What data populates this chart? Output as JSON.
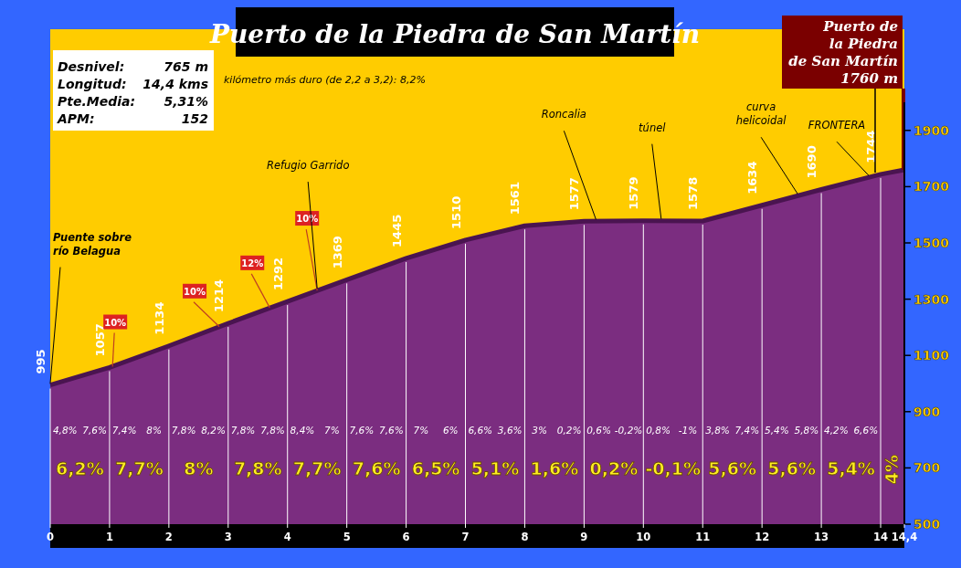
{
  "chart_data": {
    "type": "area",
    "title": "Puerto de la Piedra de San Martín",
    "x": [
      0,
      1,
      2,
      3,
      4,
      5,
      6,
      7,
      8,
      9,
      10,
      11,
      12,
      13,
      14,
      14.4
    ],
    "series": [
      {
        "color": "#7b2d80",
        "values": [
          995,
          1057,
          1134,
          1214,
          1292,
          1369,
          1445,
          1510,
          1561,
          1577,
          1579,
          1578,
          1634,
          1690,
          1744,
          1760
        ],
        "value_labels": [
          "995",
          "1057",
          "1134",
          "1214",
          "1292",
          "1369",
          "1445",
          "1510",
          "1561",
          "1577",
          "1579",
          "1578",
          "1634",
          "1690",
          "1744",
          null
        ]
      }
    ],
    "xlim": [
      0,
      14.4
    ],
    "xticks": [
      0,
      1,
      2,
      3,
      4,
      5,
      6,
      7,
      8,
      9,
      10,
      11,
      12,
      13,
      14,
      {
        "value": 14.4,
        "label": "14,4"
      }
    ],
    "ylim": [
      500,
      2000
    ],
    "yticks": [
      500,
      700,
      900,
      1100,
      1300,
      1500,
      1700,
      1900
    ],
    "grid": "x",
    "annotations": [
      "Desnivel:",
      "765 m",
      "Longitud:",
      "14,4 kms",
      "Pte.Media:",
      "5,31%",
      "APM:",
      "152",
      "kilómetro más duro (de 2,2 a 3,2): 8,2%",
      "4,8%",
      "7,6%",
      "7,4%",
      "8%",
      "7,8%",
      "8,2%",
      "7,8%",
      "7,8%",
      "8,4%",
      "7%",
      "7,6%",
      "7,6%",
      "7%",
      "6%",
      "6,6%",
      "3,6%",
      "3%",
      "0,2%",
      "0,6%",
      "-0,2%",
      "0,8%",
      "-1%",
      "3,8%",
      "7,4%",
      "5,4%",
      "5,8%",
      "4,2%",
      "6,6%",
      "6,2%",
      "7,7%",
      "8%",
      "7,8%",
      "7,7%",
      "7,6%",
      "6,5%",
      "5,1%",
      "1,6%",
      "0,2%",
      "-0,1%",
      "5,6%",
      "5,6%",
      "5,4%",
      "4%",
      {
        "text": "10%",
        "x": 1.05,
        "y": 1060
      },
      {
        "text": "10%",
        "x": 2.85,
        "y": 1202
      },
      {
        "text": "12%",
        "x": 3.7,
        "y": 1270
      },
      {
        "text": "10%",
        "x": 4.5,
        "y": 1331
      },
      {
        "text": "Puente sobre\nrío Belagua",
        "x": 0,
        "y": 995
      },
      {
        "text": "Refugio Garrido",
        "x": 4.5,
        "y": 1331
      },
      {
        "text": "Roncalia",
        "x": 9.2,
        "y": 1577
      },
      {
        "text": "túnel",
        "x": 10.3,
        "y": 1579
      },
      {
        "text": "curva\nhelicoidal",
        "x": 12.6,
        "y": 1668
      },
      {
        "text": "FRONTERA",
        "x": 13.8,
        "y": 1733
      },
      {
        "text": "Puerto de\nla Piedra\nde San Martín\n1760 m",
        "x": 14.4,
        "y": 1760
      }
    ]
  }
}
